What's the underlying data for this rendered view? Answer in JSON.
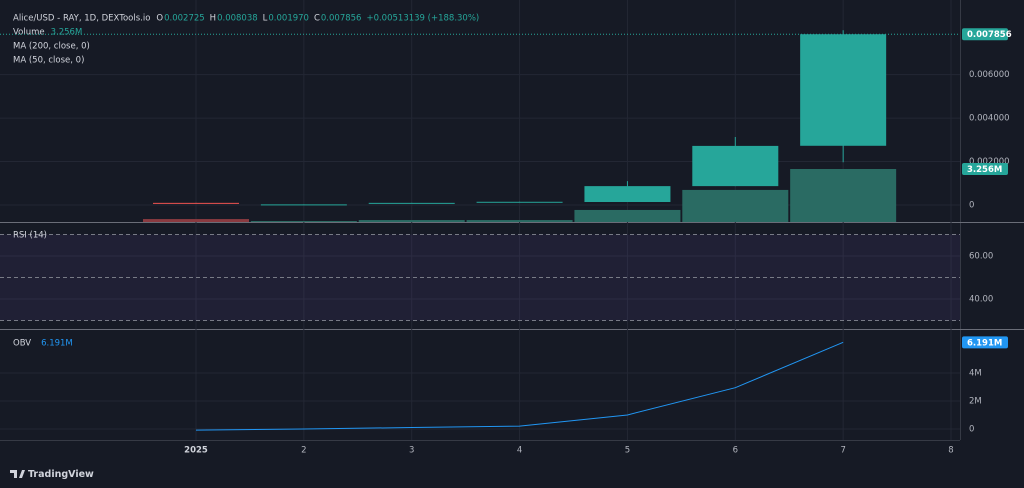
{
  "chart_data": [
    {
      "type": "candlestick",
      "title": "Alice/USD - RAY, 1D, DEXTools.io",
      "ohlc_legend": [
        {
          "label": "O",
          "value": "0.002725"
        },
        {
          "label": "H",
          "value": "0.008038"
        },
        {
          "label": "L",
          "value": "0.001970"
        },
        {
          "label": "C",
          "value": "0.007856"
        }
      ],
      "change": "+0.00513139 (+188.30%)",
      "categories": [
        "2025",
        "2",
        "3",
        "4",
        "5",
        "6",
        "7",
        "8"
      ],
      "open": [
        0.0001,
        2e-05,
        8e-05,
        0.00012,
        0.00014,
        0.00087,
        0.002725,
        null
      ],
      "high": [
        0.0001,
        3e-05,
        0.0001,
        0.00015,
        0.0011,
        0.00313,
        0.008038,
        null
      ],
      "low": [
        8e-05,
        2e-05,
        8e-05,
        0.00012,
        0.00014,
        0.00087,
        0.00197,
        null
      ],
      "close": [
        8e-05,
        3e-05,
        0.0001,
        0.00015,
        0.00087,
        0.00272,
        0.007856,
        null
      ],
      "close_labels": [
        null,
        null,
        null,
        null,
        null,
        null,
        "0.007856",
        null
      ],
      "up_color": "#26a69a",
      "down_color": "#ef5350",
      "ylim": [
        -0.00078,
        0.0092
      ],
      "yticks": [
        0,
        {
          "value": 0.002,
          "label": "0.002000"
        },
        {
          "value": 0.004,
          "label": "0.004000"
        },
        {
          "value": 0.006,
          "label": "0.006000"
        }
      ],
      "grid": true,
      "volume": {
        "name": "Volume",
        "values": [
          0.18,
          0.06,
          0.12,
          0.12,
          0.74,
          1.97,
          3.256,
          null
        ],
        "value_labels": [
          null,
          null,
          null,
          null,
          null,
          null,
          "3.256M",
          null
        ],
        "ylim": [
          0,
          13.33
        ],
        "up_color": "#2a6b63",
        "down_color": "#8a3a40"
      },
      "indicators": [
        "MA (200, close, 0)",
        "MA (50, close, 0)"
      ]
    },
    {
      "type": "rsi",
      "title": "RSI (14)",
      "ylim": [
        26.5,
        73.5
      ],
      "yticks": [
        {
          "value": 60,
          "label": "60.00"
        },
        {
          "value": 40,
          "label": "40.00"
        }
      ],
      "bands": [
        70,
        50,
        30
      ],
      "band_color": "#7e57c2"
    },
    {
      "type": "line",
      "title": "OBV",
      "values": [
        -0.08,
        0.0,
        0.1,
        0.2,
        1.0,
        2.95,
        6.191,
        null
      ],
      "value_labels": [
        null,
        null,
        null,
        null,
        null,
        null,
        "6.191M",
        null
      ],
      "color": "#2196f3",
      "ylim": [
        -0.79,
        6.93
      ],
      "yticks": [
        0,
        {
          "value": 2,
          "label": "2M"
        },
        {
          "value": 4,
          "label": "4M"
        }
      ]
    }
  ],
  "footer": {
    "brand": "TradingView"
  }
}
